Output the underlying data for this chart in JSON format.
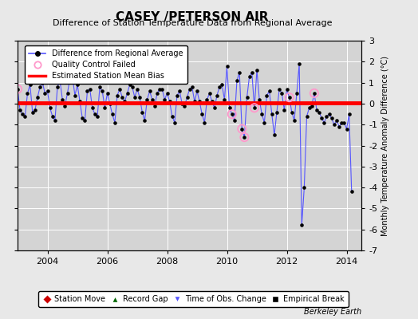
{
  "title": "CASEY /PETERSON AIR",
  "subtitle": "Difference of Station Temperature Data from Regional Average",
  "ylabel_right": "Monthly Temperature Anomaly Difference (°C)",
  "xlim": [
    2003.0,
    2014.5
  ],
  "ylim": [
    -7,
    3
  ],
  "yticks": [
    -7,
    -6,
    -5,
    -4,
    -3,
    -2,
    -1,
    0,
    1,
    2,
    3
  ],
  "xticks": [
    2004,
    2006,
    2008,
    2010,
    2012,
    2014
  ],
  "bias_line": 0.05,
  "background_color": "#e8e8e8",
  "plot_bg_color": "#d4d4d4",
  "grid_color": "#ffffff",
  "line_color": "#5555ff",
  "bias_color": "#ff0000",
  "marker_color": "#000000",
  "qc_color": "#ff99cc",
  "footer": "Berkeley Earth",
  "times": [
    2003.0,
    2003.083,
    2003.167,
    2003.25,
    2003.333,
    2003.417,
    2003.5,
    2003.583,
    2003.667,
    2003.75,
    2003.833,
    2003.917,
    2004.0,
    2004.083,
    2004.167,
    2004.25,
    2004.333,
    2004.417,
    2004.5,
    2004.583,
    2004.667,
    2004.75,
    2004.833,
    2004.917,
    2005.0,
    2005.083,
    2005.167,
    2005.25,
    2005.333,
    2005.417,
    2005.5,
    2005.583,
    2005.667,
    2005.75,
    2005.833,
    2005.917,
    2006.0,
    2006.083,
    2006.167,
    2006.25,
    2006.333,
    2006.417,
    2006.5,
    2006.583,
    2006.667,
    2006.75,
    2006.833,
    2006.917,
    2007.0,
    2007.083,
    2007.167,
    2007.25,
    2007.333,
    2007.417,
    2007.5,
    2007.583,
    2007.667,
    2007.75,
    2007.833,
    2007.917,
    2008.0,
    2008.083,
    2008.167,
    2008.25,
    2008.333,
    2008.417,
    2008.5,
    2008.583,
    2008.667,
    2008.75,
    2008.833,
    2008.917,
    2009.0,
    2009.083,
    2009.167,
    2009.25,
    2009.333,
    2009.417,
    2009.5,
    2009.583,
    2009.667,
    2009.75,
    2009.833,
    2009.917,
    2010.0,
    2010.083,
    2010.167,
    2010.25,
    2010.333,
    2010.417,
    2010.5,
    2010.583,
    2010.667,
    2010.75,
    2010.833,
    2010.917,
    2011.0,
    2011.083,
    2011.167,
    2011.25,
    2011.333,
    2011.417,
    2011.5,
    2011.583,
    2011.667,
    2011.75,
    2011.833,
    2011.917,
    2012.0,
    2012.083,
    2012.167,
    2012.25,
    2012.333,
    2012.417,
    2012.5,
    2012.583,
    2012.667,
    2012.75,
    2012.833,
    2012.917,
    2013.0,
    2013.083,
    2013.167,
    2013.25,
    2013.333,
    2013.417,
    2013.5,
    2013.583,
    2013.667,
    2013.75,
    2013.833,
    2013.917,
    2014.0,
    2014.083,
    2014.167
  ],
  "values": [
    0.7,
    -0.3,
    -0.5,
    -0.6,
    0.5,
    0.9,
    -0.4,
    -0.3,
    0.3,
    0.8,
    1.0,
    0.5,
    0.6,
    -0.2,
    -0.6,
    -0.8,
    0.8,
    1.1,
    0.2,
    -0.1,
    0.5,
    1.2,
    1.3,
    0.4,
    0.9,
    0.1,
    -0.7,
    -0.8,
    0.6,
    0.7,
    -0.2,
    -0.5,
    -0.6,
    0.8,
    0.6,
    -0.2,
    0.5,
    0.0,
    -0.5,
    -0.9,
    0.4,
    0.7,
    0.3,
    0.1,
    0.5,
    0.9,
    0.8,
    0.3,
    0.7,
    0.3,
    -0.4,
    -0.8,
    0.2,
    0.6,
    0.2,
    -0.1,
    0.5,
    0.7,
    0.7,
    0.2,
    0.5,
    0.1,
    -0.6,
    -0.9,
    0.4,
    0.6,
    0.0,
    -0.1,
    0.3,
    0.7,
    0.8,
    0.1,
    0.6,
    0.1,
    -0.5,
    -0.9,
    0.2,
    0.5,
    0.1,
    -0.2,
    0.4,
    0.8,
    0.9,
    0.2,
    1.8,
    -0.2,
    -0.5,
    -0.8,
    1.1,
    1.5,
    -1.2,
    -1.6,
    0.3,
    1.3,
    1.5,
    -0.2,
    1.6,
    0.2,
    -0.5,
    -0.9,
    0.4,
    0.6,
    -0.5,
    -1.5,
    -0.4,
    0.7,
    0.5,
    -0.3,
    0.7,
    0.3,
    -0.4,
    -0.8,
    0.5,
    1.9,
    -5.8,
    -4.0,
    -0.6,
    -0.2,
    -0.1,
    0.5,
    -0.3,
    -0.4,
    -0.7,
    -0.9,
    -0.6,
    -0.5,
    -0.7,
    -1.0,
    -0.8,
    -1.1,
    -0.9,
    -0.9,
    -1.2,
    -0.5,
    -4.2
  ],
  "qc_failed_indices": [
    0,
    86,
    90,
    91,
    95,
    109,
    119
  ],
  "title_fontsize": 11,
  "subtitle_fontsize": 8,
  "tick_fontsize": 8,
  "legend_fontsize": 7,
  "ylabel_fontsize": 7
}
